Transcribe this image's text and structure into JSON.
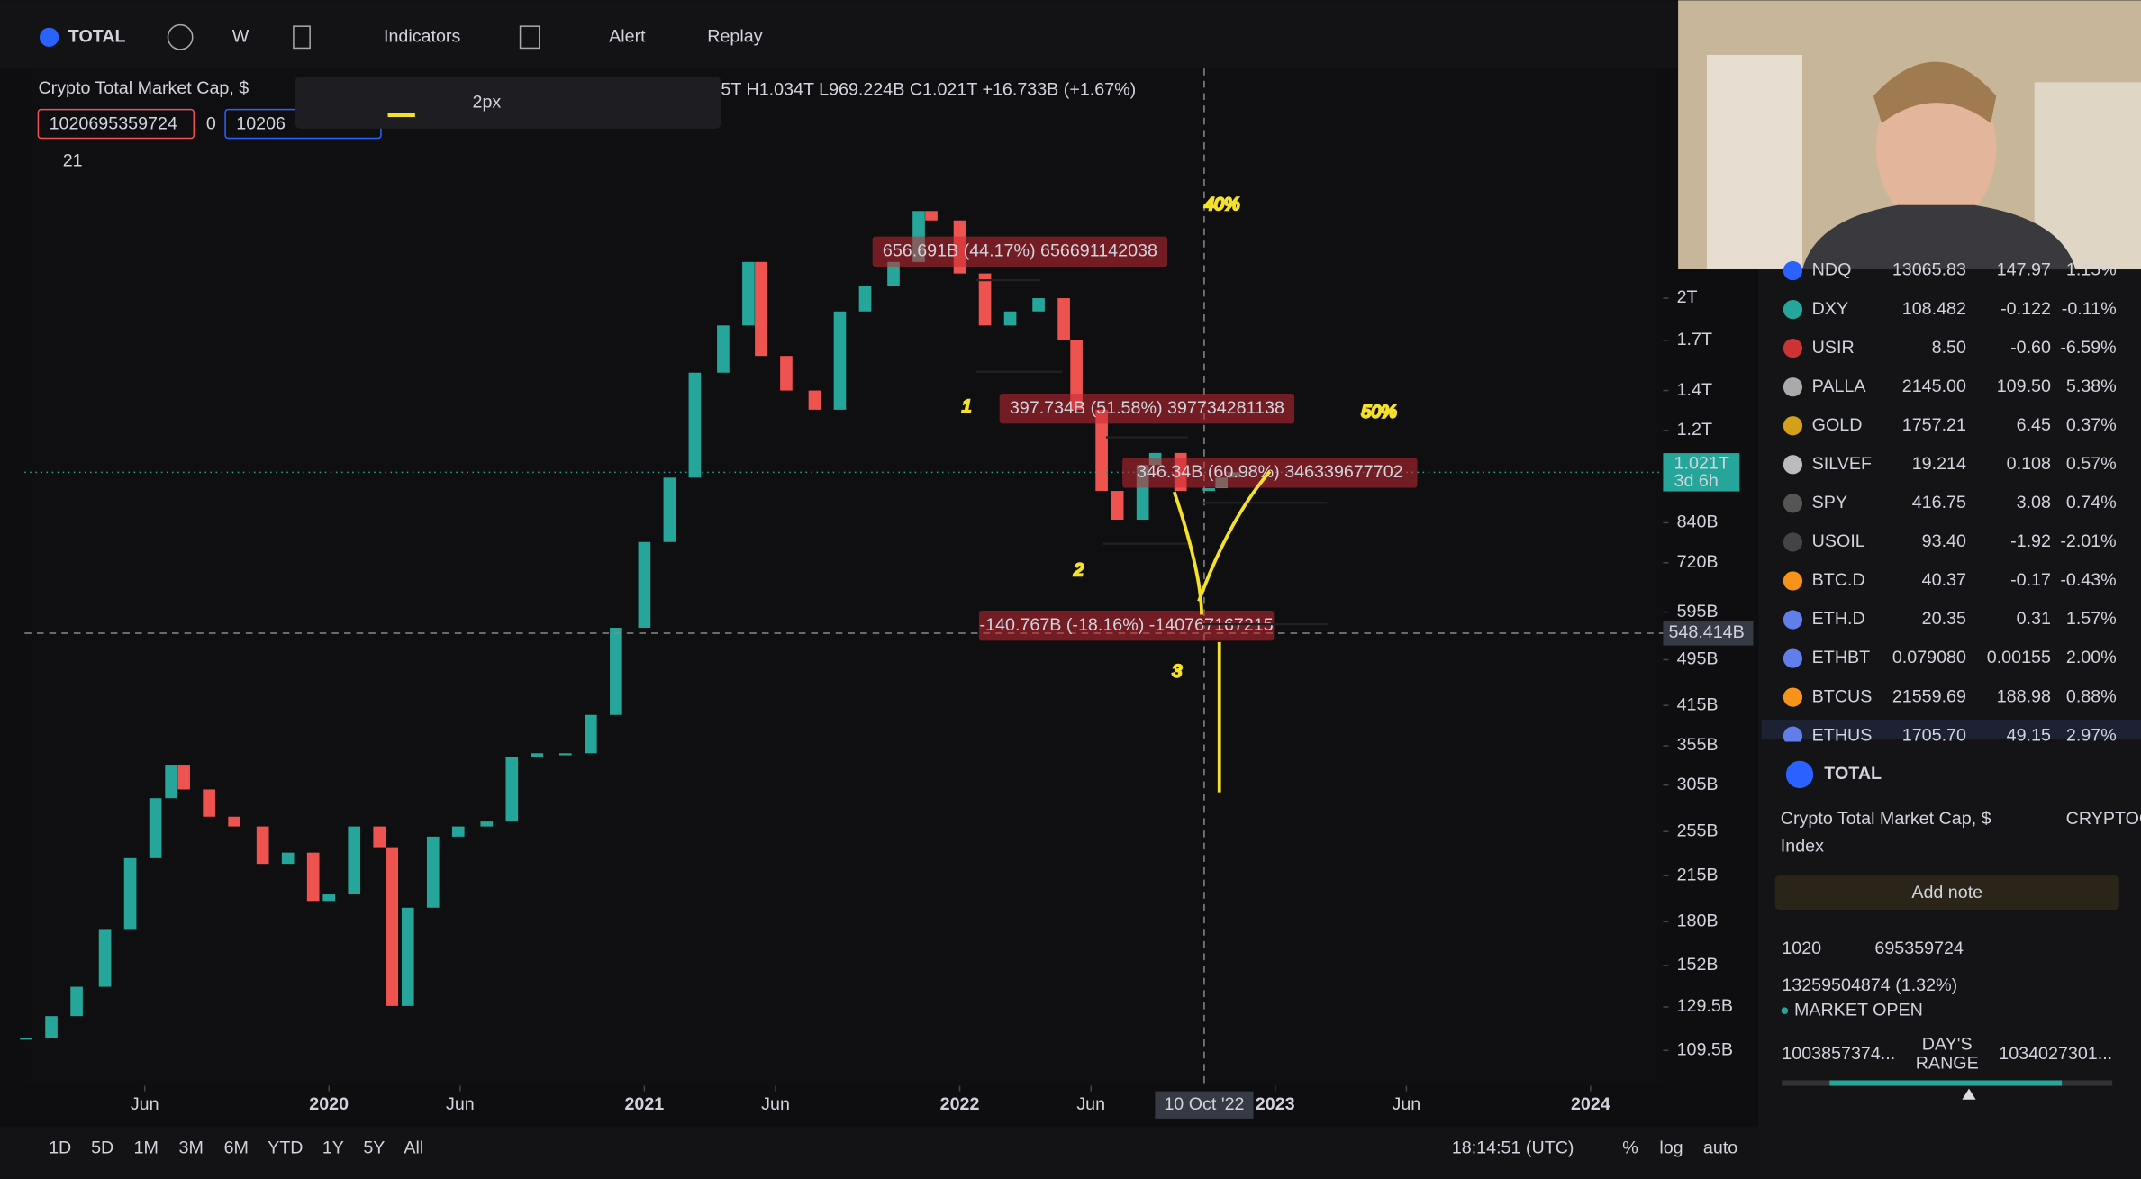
{
  "toolbar": {
    "symbol": "TOTAL",
    "interval": "W",
    "indicators": "Indicators",
    "alert": "Alert",
    "replay": "Replay"
  },
  "legend": {
    "title": "Crypto Total Market Cap, $",
    "ohlc": "5T H1.034T L969.224B C1.021T +16.733B (+1.67%)",
    "sell": "1020695359724",
    "spread": "0",
    "buy": "10206",
    "stroke": "2px",
    "count": "21"
  },
  "measurements": [
    "656.691B (44.17%) 656691142038",
    "397.734B (51.58%) 397734281138",
    "346.34B (60.98%) 346339677702",
    "-140.767B (-18.16%) -140767167215"
  ],
  "annotations": [
    "40%",
    "50%",
    "1",
    "2",
    "3"
  ],
  "chart_data": {
    "type": "candlestick",
    "log": true,
    "up_color": "#26a69a",
    "down_color": "#ef5350",
    "x": [
      2019.04,
      2019.12,
      2019.2,
      2019.29,
      2019.37,
      2019.45,
      2019.5,
      2019.54,
      2019.62,
      2019.7,
      2019.79,
      2019.87,
      2019.95,
      2020.0,
      2020.08,
      2020.16,
      2020.2,
      2020.25,
      2020.33,
      2020.41,
      2020.5,
      2020.58,
      2020.66,
      2020.75,
      2020.83,
      2020.91,
      2021.0,
      2021.08,
      2021.16,
      2021.25,
      2021.33,
      2021.37,
      2021.45,
      2021.54,
      2021.62,
      2021.7,
      2021.79,
      2021.87,
      2021.91,
      2022.0,
      2022.08,
      2022.16,
      2022.25,
      2022.33,
      2022.37,
      2022.45,
      2022.5,
      2022.58,
      2022.62,
      2022.7,
      2022.79,
      2022.83,
      2022.87
    ],
    "values": [
      115,
      125,
      140,
      175,
      230,
      290,
      330,
      300,
      270,
      260,
      225,
      235,
      195,
      200,
      260,
      240,
      130,
      190,
      250,
      260,
      265,
      340,
      345,
      345,
      400,
      560,
      780,
      1000,
      1500,
      1800,
      2300,
      1600,
      1400,
      1300,
      1900,
      2100,
      2300,
      2800,
      2700,
      2200,
      1800,
      1900,
      2000,
      1700,
      1300,
      950,
      850,
      1050,
      1100,
      950,
      960,
      1000,
      1021
    ],
    "xlim": [
      2019.035,
      2024.23
    ],
    "xticks": [
      {
        "value": 2019.416,
        "label": "Jun"
      },
      {
        "value": 2020,
        "label": "2020"
      },
      {
        "value": 2020.416,
        "label": "Jun"
      },
      {
        "value": 2021,
        "label": "2021"
      },
      {
        "value": 2021.416,
        "label": "Jun"
      },
      {
        "value": 2022,
        "label": "2022"
      },
      {
        "value": 2022.416,
        "label": "Jun"
      },
      {
        "value": 2023,
        "label": "2023"
      },
      {
        "value": 2023.416,
        "label": "Jun"
      },
      {
        "value": 2024,
        "label": "2024"
      }
    ],
    "ylim": [
      95.5,
      4853
    ],
    "yticks": [
      {
        "value": 2000,
        "label": "2T"
      },
      {
        "value": 1700,
        "label": "1.7T"
      },
      {
        "value": 1400,
        "label": "1.4T"
      },
      {
        "value": 1200,
        "label": "1.2T"
      },
      {
        "value": 840,
        "label": "840B"
      },
      {
        "value": 720,
        "label": "720B"
      },
      {
        "value": 595,
        "label": "595B"
      },
      {
        "value": 495,
        "label": "495B"
      },
      {
        "value": 415,
        "label": "415B"
      },
      {
        "value": 355,
        "label": "355B"
      },
      {
        "value": 305,
        "label": "305B"
      },
      {
        "value": 255,
        "label": "255B"
      },
      {
        "value": 215,
        "label": "215B"
      },
      {
        "value": 180,
        "label": "180B"
      },
      {
        "value": 152,
        "label": "152B"
      },
      {
        "value": 129.5,
        "label": "129.5B"
      },
      {
        "value": 109.5,
        "label": "109.5B"
      }
    ],
    "last_price": {
      "value": 1021,
      "label": "1.021T"
    },
    "countdown": "3d 6h",
    "crosshair_price": {
      "value": 548.414,
      "label": "548.414B"
    },
    "crosshair_date": {
      "value": 2022.775,
      "label": "10 Oct '22"
    }
  },
  "bottom_bar": {
    "ranges": [
      "1D",
      "5D",
      "1M",
      "3M",
      "6M",
      "YTD",
      "1Y",
      "5Y",
      "All"
    ],
    "time": "18:14:51 (UTC)",
    "percent": "%",
    "log": "log",
    "auto": "auto"
  },
  "watchlist": [
    [
      "NDQ",
      "13065.83",
      "147.97",
      "1.15%"
    ],
    [
      "DXY",
      "108.482",
      "-0.122",
      "-0.11%"
    ],
    [
      "USIR",
      "8.50",
      "-0.60",
      "-6.59%"
    ],
    [
      "PALLA",
      "2145.00",
      "109.50",
      "5.38%"
    ],
    [
      "GOLD",
      "1757.21",
      "6.45",
      "0.37%"
    ],
    [
      "SILVEF",
      "19.214",
      "0.108",
      "0.57%"
    ],
    [
      "SPY",
      "416.75",
      "3.08",
      "0.74%"
    ],
    [
      "USOIL",
      "93.40",
      "-1.92",
      "-2.01%"
    ],
    [
      "BTC.D",
      "40.37",
      "-0.17",
      "-0.43%"
    ],
    [
      "ETH.D",
      "20.35",
      "0.31",
      "1.57%"
    ],
    [
      "ETHBT",
      "0.079080",
      "0.00155",
      "2.00%"
    ],
    [
      "BTCUS",
      "21559.69",
      "188.98",
      "0.88%"
    ],
    [
      "ETHUS",
      "1705.70",
      "49.15",
      "2.97%"
    ]
  ],
  "details": {
    "symbol": "TOTAL",
    "name": "Crypto Total Market Cap, $",
    "exchange": "CRYPTOCAP",
    "kind": "Index",
    "add_note": "Add note",
    "price_head": "1020",
    "price_tail": "695359724",
    "change": "13259504874 (1.32%)",
    "status": "MARKET OPEN",
    "range_low": "1003857374...",
    "range_label_1": "DAY'S",
    "range_label_2": "RANGE",
    "range_high": "1034027301..."
  }
}
